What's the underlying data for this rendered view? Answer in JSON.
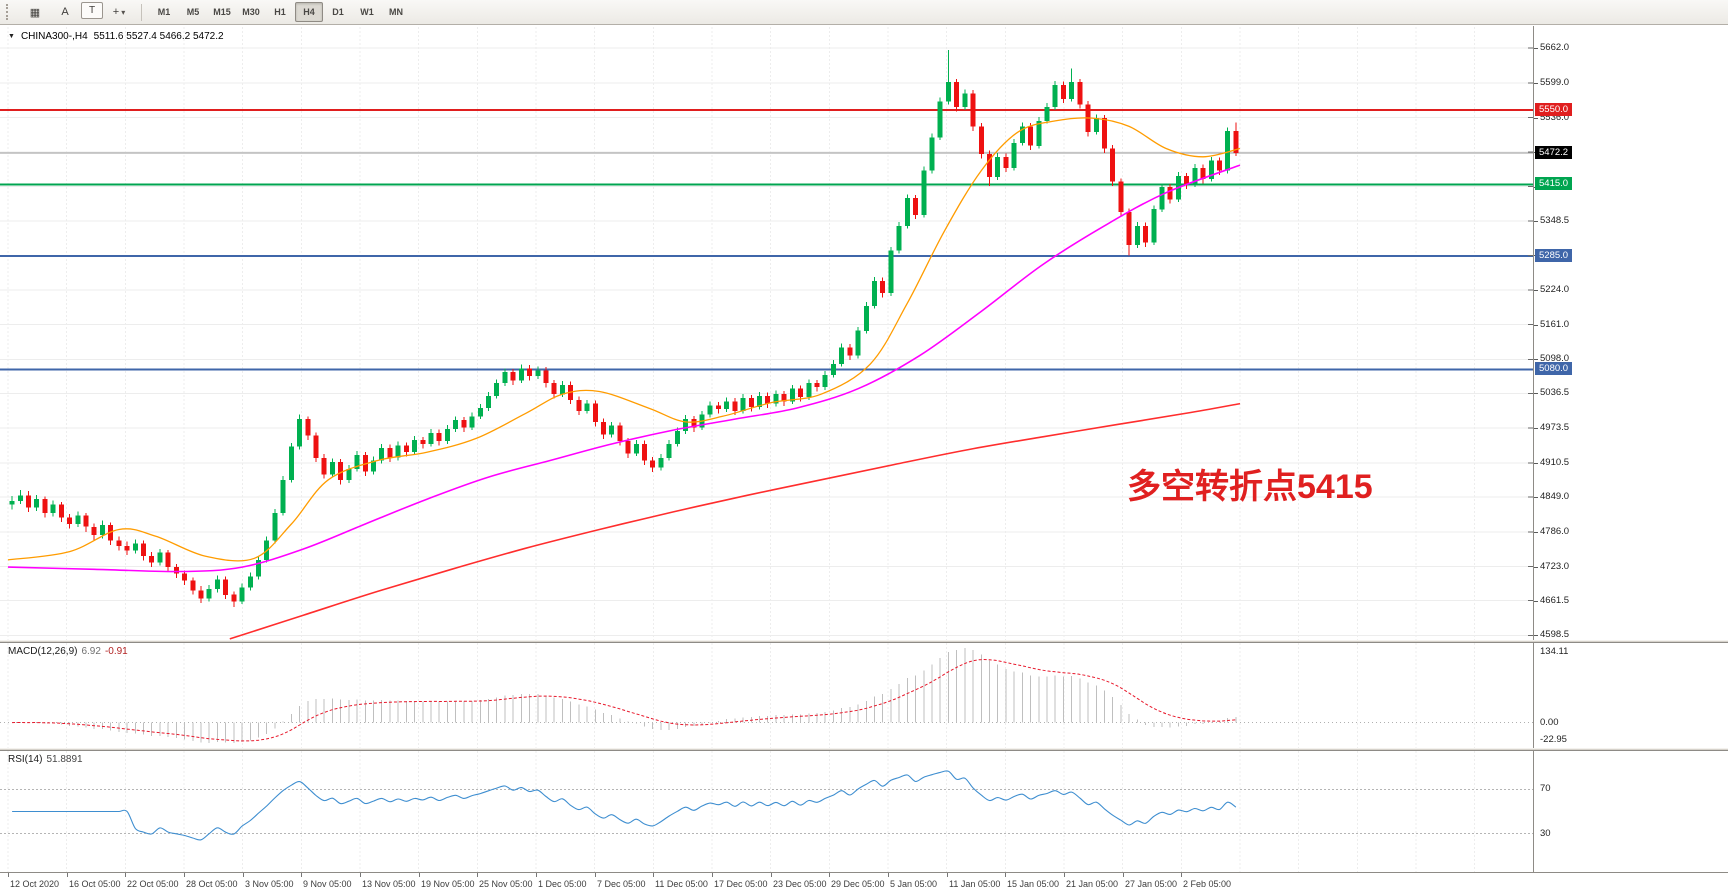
{
  "toolbar": {
    "buttons": [
      {
        "name": "charts-grid-icon",
        "glyph": "▦"
      },
      {
        "name": "arrow-text-tool",
        "glyph": "A"
      },
      {
        "name": "text-label-tool",
        "glyph": "T",
        "boxed": true
      },
      {
        "name": "cursor-crosshair-tool",
        "glyph": "+",
        "caret": true
      }
    ],
    "timeframes": [
      "M1",
      "M5",
      "M15",
      "M30",
      "H1",
      "H4",
      "D1",
      "W1",
      "MN"
    ],
    "active_timeframe": "H4"
  },
  "chart_data": {
    "type": "candlestick",
    "symbol": "CHINA300-",
    "timeframe": "H4",
    "title_symbol": "CHINA300-,H4",
    "title_ohlc": "5511.6 5527.4 5466.2 5472.2",
    "colors": {
      "up": "#00b050",
      "down": "#ee1111",
      "grid": "#ededed",
      "bg": "#ffffff"
    },
    "price_axis": {
      "min": 4590,
      "max": 5700,
      "ticks": [
        5662.0,
        5599.0,
        5536.0,
        5473.5,
        5411.0,
        5348.5,
        5286.5,
        5224.0,
        5161.0,
        5098.0,
        5036.5,
        4973.5,
        4910.5,
        4849.0,
        4786.0,
        4723.0,
        4661.5,
        4598.5
      ]
    },
    "time_axis": {
      "labels": [
        "12 Oct 2020",
        "16 Oct 05:00",
        "22 Oct 05:00",
        "28 Oct 05:00",
        "3 Nov 05:00",
        "9 Nov 05:00",
        "13 Nov 05:00",
        "19 Nov 05:00",
        "25 Nov 05:00",
        "1 Dec 05:00",
        "7 Dec 05:00",
        "11 Dec 05:00",
        "17 Dec 05:00",
        "23 Dec 05:00",
        "29 Dec 05:00",
        "5 Jan 05:00",
        "11 Jan 05:00",
        "15 Jan 05:00",
        "21 Jan 05:00",
        "27 Jan 05:00",
        "2 Feb 05:00"
      ]
    },
    "levels": [
      {
        "price": 5550.0,
        "label": "5550.0",
        "color": "#e01e1e",
        "tag_bg": "#e01e1e",
        "width": 2
      },
      {
        "price": 5472.2,
        "label": "5472.2",
        "color": "#9a9a9a",
        "tag_bg": "#000000",
        "width": 1
      },
      {
        "price": 5415.0,
        "label": "5415.0",
        "color": "#00a550",
        "tag_bg": "#00a550",
        "width": 2
      },
      {
        "price": 5285.0,
        "label": "5285.0",
        "color": "#3f66a9",
        "tag_bg": "#3f66a9",
        "width": 2
      },
      {
        "price": 5080.0,
        "label": "5080.0",
        "color": "#3f66a9",
        "tag_bg": "#3f66a9",
        "width": 2
      }
    ],
    "annotation": {
      "text": "多空转折点5415",
      "color": "#e02020",
      "x_frac": 0.735,
      "price": 4848,
      "font_size": 34
    },
    "moving_averages": [
      {
        "name": "ma-fast",
        "color": "#ff9c00",
        "width": 1.3,
        "points": [
          [
            0.0,
            4735
          ],
          [
            0.05,
            4750
          ],
          [
            0.09,
            4790
          ],
          [
            0.12,
            4778
          ],
          [
            0.16,
            4742
          ],
          [
            0.2,
            4738
          ],
          [
            0.23,
            4800
          ],
          [
            0.26,
            4880
          ],
          [
            0.3,
            4915
          ],
          [
            0.34,
            4930
          ],
          [
            0.38,
            4955
          ],
          [
            0.42,
            5000
          ],
          [
            0.45,
            5035
          ],
          [
            0.48,
            5040
          ],
          [
            0.52,
            5010
          ],
          [
            0.55,
            4985
          ],
          [
            0.58,
            4995
          ],
          [
            0.62,
            5020
          ],
          [
            0.66,
            5035
          ],
          [
            0.7,
            5090
          ],
          [
            0.73,
            5200
          ],
          [
            0.76,
            5330
          ],
          [
            0.79,
            5440
          ],
          [
            0.82,
            5510
          ],
          [
            0.85,
            5530
          ],
          [
            0.88,
            5535
          ],
          [
            0.91,
            5520
          ],
          [
            0.94,
            5480
          ],
          [
            0.97,
            5465
          ],
          [
            1.0,
            5480
          ]
        ]
      },
      {
        "name": "ma-mid",
        "color": "#ff00ff",
        "width": 1.6,
        "points": [
          [
            0.0,
            4722
          ],
          [
            0.07,
            4718
          ],
          [
            0.14,
            4714
          ],
          [
            0.19,
            4722
          ],
          [
            0.24,
            4755
          ],
          [
            0.29,
            4800
          ],
          [
            0.34,
            4845
          ],
          [
            0.39,
            4885
          ],
          [
            0.44,
            4915
          ],
          [
            0.49,
            4945
          ],
          [
            0.54,
            4970
          ],
          [
            0.59,
            4990
          ],
          [
            0.64,
            5010
          ],
          [
            0.69,
            5045
          ],
          [
            0.74,
            5105
          ],
          [
            0.79,
            5185
          ],
          [
            0.84,
            5270
          ],
          [
            0.89,
            5340
          ],
          [
            0.94,
            5400
          ],
          [
            1.0,
            5450
          ]
        ]
      },
      {
        "name": "ma-slow",
        "color": "#ff2d2d",
        "width": 1.6,
        "points": [
          [
            0.18,
            4592
          ],
          [
            0.24,
            4635
          ],
          [
            0.3,
            4678
          ],
          [
            0.36,
            4718
          ],
          [
            0.42,
            4756
          ],
          [
            0.48,
            4790
          ],
          [
            0.54,
            4822
          ],
          [
            0.6,
            4852
          ],
          [
            0.66,
            4880
          ],
          [
            0.72,
            4908
          ],
          [
            0.78,
            4935
          ],
          [
            0.84,
            4958
          ],
          [
            0.9,
            4980
          ],
          [
            0.96,
            5002
          ],
          [
            1.0,
            5018
          ]
        ]
      }
    ],
    "candles": [
      [
        4835,
        4851,
        4826,
        4842
      ],
      [
        4842,
        4862,
        4836,
        4852
      ],
      [
        4852,
        4860,
        4822,
        4830
      ],
      [
        4830,
        4853,
        4824,
        4845
      ],
      [
        4845,
        4850,
        4812,
        4820
      ],
      [
        4820,
        4843,
        4814,
        4835
      ],
      [
        4835,
        4840,
        4804,
        4812
      ],
      [
        4812,
        4818,
        4792,
        4800
      ],
      [
        4800,
        4823,
        4795,
        4815
      ],
      [
        4815,
        4820,
        4786,
        4795
      ],
      [
        4795,
        4801,
        4771,
        4780
      ],
      [
        4780,
        4806,
        4774,
        4798
      ],
      [
        4798,
        4803,
        4762,
        4770
      ],
      [
        4770,
        4777,
        4752,
        4760
      ],
      [
        4760,
        4768,
        4744,
        4752
      ],
      [
        4752,
        4772,
        4747,
        4765
      ],
      [
        4765,
        4770,
        4734,
        4742
      ],
      [
        4742,
        4749,
        4722,
        4730
      ],
      [
        4730,
        4755,
        4725,
        4748
      ],
      [
        4748,
        4753,
        4714,
        4722
      ],
      [
        4722,
        4728,
        4702,
        4710
      ],
      [
        4710,
        4716,
        4690,
        4698
      ],
      [
        4698,
        4703,
        4672,
        4680
      ],
      [
        4680,
        4688,
        4657,
        4665
      ],
      [
        4665,
        4690,
        4660,
        4682
      ],
      [
        4682,
        4707,
        4676,
        4700
      ],
      [
        4700,
        4705,
        4664,
        4672
      ],
      [
        4672,
        4678,
        4650,
        4660
      ],
      [
        4660,
        4692,
        4655,
        4685
      ],
      [
        4685,
        4712,
        4680,
        4705
      ],
      [
        4705,
        4742,
        4700,
        4735
      ],
      [
        4735,
        4777,
        4730,
        4770
      ],
      [
        4770,
        4827,
        4765,
        4820
      ],
      [
        4820,
        4887,
        4815,
        4880
      ],
      [
        4880,
        4947,
        4875,
        4940
      ],
      [
        4940,
        4998,
        4935,
        4990
      ],
      [
        4990,
        4995,
        4952,
        4960
      ],
      [
        4960,
        4966,
        4912,
        4920
      ],
      [
        4920,
        4927,
        4882,
        4890
      ],
      [
        4890,
        4919,
        4884,
        4912
      ],
      [
        4912,
        4918,
        4872,
        4880
      ],
      [
        4880,
        4907,
        4874,
        4900
      ],
      [
        4900,
        4932,
        4895,
        4925
      ],
      [
        4925,
        4930,
        4887,
        4895
      ],
      [
        4895,
        4922,
        4890,
        4915
      ],
      [
        4915,
        4945,
        4910,
        4938
      ],
      [
        4938,
        4944,
        4912,
        4920
      ],
      [
        4920,
        4949,
        4915,
        4942
      ],
      [
        4942,
        4948,
        4922,
        4930
      ],
      [
        4930,
        4959,
        4925,
        4952
      ],
      [
        4952,
        4958,
        4937,
        4945
      ],
      [
        4945,
        4972,
        4940,
        4965
      ],
      [
        4965,
        4971,
        4942,
        4950
      ],
      [
        4950,
        4979,
        4945,
        4972
      ],
      [
        4972,
        4995,
        4967,
        4988
      ],
      [
        4988,
        4994,
        4967,
        4975
      ],
      [
        4975,
        5002,
        4970,
        4995
      ],
      [
        4995,
        5017,
        4990,
        5010
      ],
      [
        5010,
        5039,
        5005,
        5032
      ],
      [
        5032,
        5062,
        5027,
        5055
      ],
      [
        5055,
        5082,
        5050,
        5075
      ],
      [
        5075,
        5081,
        5052,
        5060
      ],
      [
        5060,
        5089,
        5055,
        5082
      ],
      [
        5082,
        5088,
        5060,
        5068
      ],
      [
        5068,
        5085,
        5063,
        5078
      ],
      [
        5078,
        5084,
        5047,
        5055
      ],
      [
        5055,
        5061,
        5027,
        5035
      ],
      [
        5035,
        5059,
        5030,
        5052
      ],
      [
        5052,
        5058,
        5017,
        5025
      ],
      [
        5025,
        5031,
        4997,
        5005
      ],
      [
        5005,
        5025,
        5000,
        5018
      ],
      [
        5018,
        5024,
        4977,
        4985
      ],
      [
        4985,
        4991,
        4954,
        4962
      ],
      [
        4962,
        4985,
        4957,
        4978
      ],
      [
        4978,
        4984,
        4942,
        4950
      ],
      [
        4950,
        4956,
        4920,
        4928
      ],
      [
        4928,
        4952,
        4923,
        4945
      ],
      [
        4945,
        4951,
        4907,
        4915
      ],
      [
        4915,
        4921,
        4894,
        4902
      ],
      [
        4902,
        4927,
        4897,
        4920
      ],
      [
        4920,
        4952,
        4915,
        4945
      ],
      [
        4945,
        4975,
        4940,
        4968
      ],
      [
        4968,
        4997,
        4963,
        4990
      ],
      [
        4990,
        4996,
        4967,
        4975
      ],
      [
        4975,
        5005,
        4970,
        4998
      ],
      [
        4998,
        5022,
        4993,
        5015
      ],
      [
        5015,
        5021,
        5000,
        5008
      ],
      [
        5008,
        5029,
        5003,
        5022
      ],
      [
        5022,
        5028,
        4997,
        5005
      ],
      [
        5005,
        5035,
        5000,
        5028
      ],
      [
        5028,
        5034,
        5004,
        5012
      ],
      [
        5012,
        5039,
        5007,
        5032
      ],
      [
        5032,
        5038,
        5010,
        5018
      ],
      [
        5018,
        5042,
        5013,
        5035
      ],
      [
        5035,
        5041,
        5014,
        5022
      ],
      [
        5022,
        5052,
        5017,
        5045
      ],
      [
        5045,
        5051,
        5022,
        5030
      ],
      [
        5030,
        5062,
        5025,
        5055
      ],
      [
        5055,
        5061,
        5040,
        5048
      ],
      [
        5048,
        5077,
        5043,
        5070
      ],
      [
        5070,
        5097,
        5065,
        5090
      ],
      [
        5090,
        5127,
        5085,
        5120
      ],
      [
        5120,
        5126,
        5097,
        5105
      ],
      [
        5105,
        5157,
        5100,
        5150
      ],
      [
        5150,
        5202,
        5145,
        5195
      ],
      [
        5195,
        5247,
        5190,
        5240
      ],
      [
        5240,
        5246,
        5210,
        5218
      ],
      [
        5218,
        5302,
        5213,
        5295
      ],
      [
        5295,
        5347,
        5290,
        5340
      ],
      [
        5340,
        5397,
        5335,
        5390
      ],
      [
        5390,
        5396,
        5352,
        5360
      ],
      [
        5360,
        5447,
        5355,
        5440
      ],
      [
        5440,
        5507,
        5435,
        5500
      ],
      [
        5500,
        5572,
        5495,
        5565
      ],
      [
        5565,
        5658,
        5560,
        5600
      ],
      [
        5600,
        5606,
        5547,
        5555
      ],
      [
        5555,
        5587,
        5550,
        5580
      ],
      [
        5580,
        5586,
        5512,
        5520
      ],
      [
        5520,
        5526,
        5462,
        5470
      ],
      [
        5470,
        5476,
        5412,
        5428
      ],
      [
        5428,
        5472,
        5423,
        5465
      ],
      [
        5465,
        5471,
        5437,
        5445
      ],
      [
        5445,
        5497,
        5440,
        5490
      ],
      [
        5490,
        5527,
        5485,
        5520
      ],
      [
        5520,
        5526,
        5477,
        5485
      ],
      [
        5485,
        5537,
        5480,
        5530
      ],
      [
        5530,
        5562,
        5525,
        5555
      ],
      [
        5555,
        5602,
        5550,
        5595
      ],
      [
        5595,
        5601,
        5562,
        5570
      ],
      [
        5570,
        5625,
        5565,
        5600
      ],
      [
        5600,
        5606,
        5552,
        5560
      ],
      [
        5560,
        5566,
        5502,
        5510
      ],
      [
        5510,
        5542,
        5505,
        5535
      ],
      [
        5535,
        5541,
        5472,
        5480
      ],
      [
        5480,
        5486,
        5412,
        5420
      ],
      [
        5420,
        5426,
        5357,
        5365
      ],
      [
        5365,
        5371,
        5286,
        5305
      ],
      [
        5305,
        5347,
        5300,
        5340
      ],
      [
        5340,
        5346,
        5302,
        5310
      ],
      [
        5310,
        5377,
        5305,
        5370
      ],
      [
        5370,
        5417,
        5365,
        5410
      ],
      [
        5410,
        5416,
        5380,
        5388
      ],
      [
        5388,
        5437,
        5383,
        5430
      ],
      [
        5430,
        5436,
        5407,
        5415
      ],
      [
        5415,
        5452,
        5410,
        5445
      ],
      [
        5445,
        5451,
        5417,
        5425
      ],
      [
        5425,
        5465,
        5420,
        5458
      ],
      [
        5458,
        5464,
        5432,
        5440
      ],
      [
        5440,
        5518,
        5435,
        5512
      ],
      [
        5512,
        5527,
        5466,
        5472
      ]
    ],
    "macd": {
      "name": "MACD(12,26,9)",
      "value": "6.92",
      "signal_value": "-0.91",
      "fast": 12,
      "slow": 26,
      "signal": 9,
      "axis_labels": [
        "134.11",
        "0.00",
        "-22.95"
      ],
      "hist_color": "#bfbfbf",
      "signal_color": "#e8192c"
    },
    "rsi": {
      "name": "RSI(14)",
      "value": "51.8891",
      "period": 14,
      "levels": [
        70,
        30
      ],
      "level_labels": [
        "70",
        "30"
      ],
      "color": "#3e8ed0"
    }
  }
}
